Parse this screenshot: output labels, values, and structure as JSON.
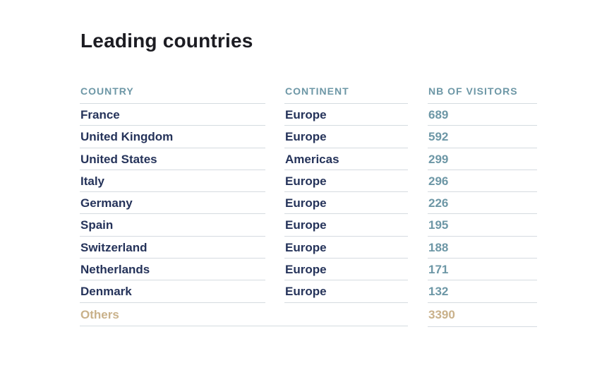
{
  "title": "Leading countries",
  "headers": {
    "country": "COUNTRY",
    "continent": "CONTINENT",
    "visitors": "NB OF VISITORS"
  },
  "rows": [
    {
      "country": "France",
      "continent": "Europe",
      "visitors": "689"
    },
    {
      "country": "United Kingdom",
      "continent": "Europe",
      "visitors": "592"
    },
    {
      "country": "United States",
      "continent": "Americas",
      "visitors": "299"
    },
    {
      "country": "Italy",
      "continent": "Europe",
      "visitors": "296"
    },
    {
      "country": "Germany",
      "continent": "Europe",
      "visitors": "226"
    },
    {
      "country": "Spain",
      "continent": "Europe",
      "visitors": "195"
    },
    {
      "country": "Switzerland",
      "continent": "Europe",
      "visitors": "188"
    },
    {
      "country": "Netherlands",
      "continent": "Europe",
      "visitors": "171"
    },
    {
      "country": "Denmark",
      "continent": "Europe",
      "visitors": "132"
    }
  ],
  "others": {
    "label": "Others",
    "visitors": "3390"
  },
  "colors": {
    "header": "#6d97a6",
    "text": "#25335a",
    "visitors": "#6d97a6",
    "others": "#c9b18a",
    "rule": "#d5dbe0"
  }
}
